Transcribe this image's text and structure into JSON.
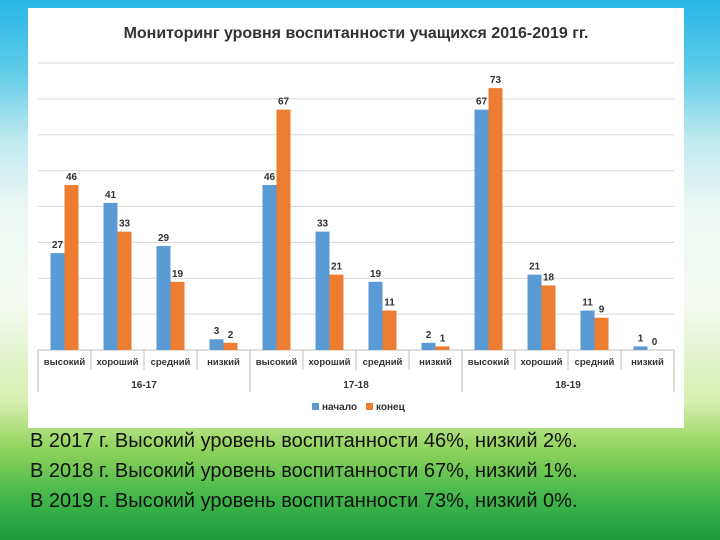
{
  "chart_data": {
    "type": "bar",
    "title": "Мониторинг уровня воспитанности учащихся 2016-2019 гг.",
    "groups": [
      "16-17",
      "17-18",
      "18-19"
    ],
    "categories": [
      "высокий",
      "хороший",
      "средний",
      "низкий"
    ],
    "series": [
      {
        "name": "начало",
        "color": "#5b9bd5",
        "values": [
          [
            27,
            41,
            29,
            3
          ],
          [
            46,
            33,
            19,
            2
          ],
          [
            67,
            21,
            11,
            1
          ]
        ]
      },
      {
        "name": "конец",
        "color": "#ed7d31",
        "values": [
          [
            46,
            33,
            19,
            2
          ],
          [
            67,
            21,
            11,
            1
          ],
          [
            73,
            18,
            9,
            0
          ]
        ]
      }
    ],
    "ylim": [
      0,
      80
    ],
    "grid": true,
    "legend_position": "bottom"
  },
  "captions": [
    "В 2017 г. Высокий уровень воспитанности 46%, низкий 2%.",
    "В 2018 г. Высокий уровень воспитанности 67%, низкий 1%.",
    "В 2019 г. Высокий уровень воспитанности 73%, низкий 0%."
  ]
}
